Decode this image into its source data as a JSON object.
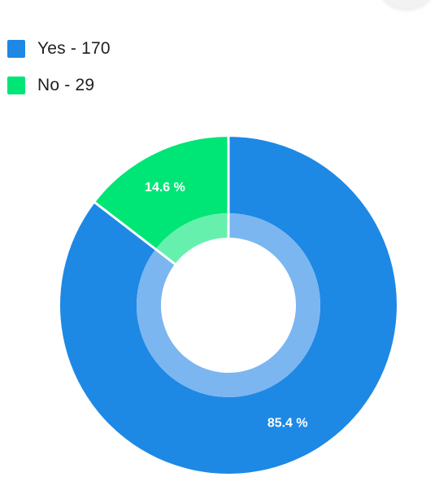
{
  "legend": [
    {
      "label": "Yes - 170",
      "color": "#1E88E5"
    },
    {
      "label": "No - 29",
      "color": "#00E676"
    }
  ],
  "chart_data": {
    "type": "pie",
    "variant": "donut",
    "categories": [
      "Yes",
      "No"
    ],
    "values": [
      170,
      29
    ],
    "percent_labels": [
      "85.4 %",
      "14.6 %"
    ],
    "colors": [
      "#1E88E5",
      "#00E676"
    ],
    "inner_colors": [
      "#7BB6F0",
      "#66F0AE"
    ],
    "legend_position": "top-left"
  }
}
